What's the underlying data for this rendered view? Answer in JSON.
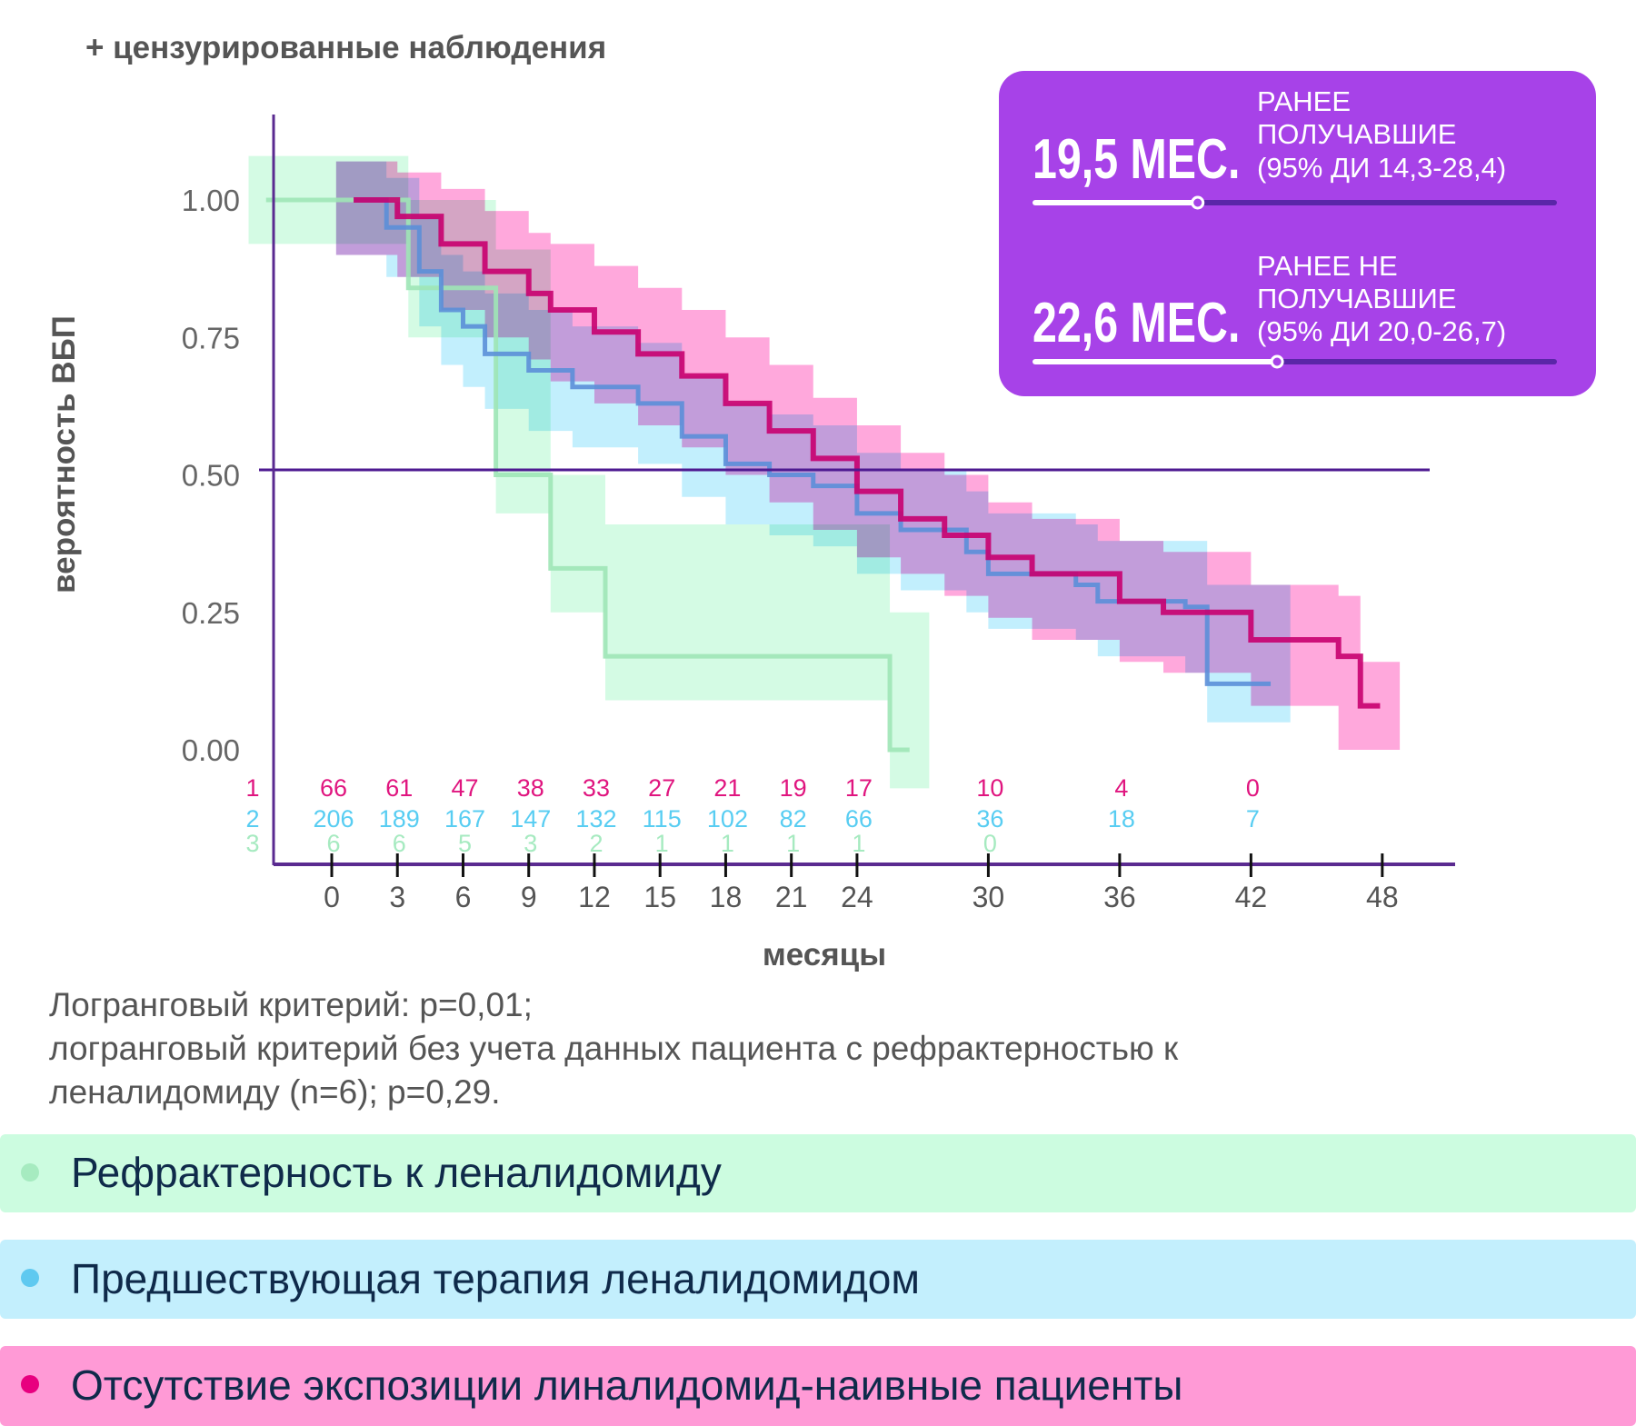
{
  "colors": {
    "pink_band": "#ff86cf",
    "pink_line": "#c8006f",
    "blue_band": "#b3ebfc",
    "blue_line": "#5b8fd8",
    "green_band": "#c9fadd",
    "green_line": "#9ee5b6",
    "box": "#a742e8",
    "median_line": "#4e1a91",
    "axis": "#5a2a90"
  },
  "header": {
    "censored_note": "+ цензурированные наблюдения"
  },
  "median_box": {
    "items": [
      {
        "value": "19,5 МЕС.",
        "line1": "РАНЕЕ",
        "line2": "ПОЛУЧАВШИЕ",
        "line3": "(95% ДИ 14,3-28,4)",
        "fraction": 0.313
      },
      {
        "value": "22,6 МЕС.",
        "line1": "РАНЕЕ НЕ",
        "line2": "ПОЛУЧАВШИЕ",
        "line3": "(95% ДИ 20,0-26,7)",
        "fraction": 0.466
      }
    ]
  },
  "chart_data": {
    "type": "line",
    "title": "",
    "xlabel": "месяцы",
    "ylabel": "вероятность ВБП",
    "xlim": [
      -3,
      49
    ],
    "ylim": [
      0,
      1
    ],
    "x_ticks": [
      0,
      3,
      6,
      9,
      12,
      15,
      18,
      21,
      24,
      30,
      36,
      42,
      48
    ],
    "x_tick_labels": [
      "0",
      "3",
      "6",
      "9",
      "12",
      "15",
      "18",
      "21",
      "24",
      "30",
      "36",
      "42",
      "48"
    ],
    "y_ticks": [
      0,
      0.25,
      0.5,
      0.75,
      1.0
    ],
    "y_tick_labels": [
      "0.00",
      "0.25",
      "0.50",
      "0.75",
      "1.00"
    ],
    "reference_line": 0.5,
    "series": [
      {
        "name": "Отсутствие экспозиции линалидомид-наивные пациенты",
        "key": "pink",
        "x": [
          1,
          3,
          5,
          7,
          9,
          10,
          12,
          14,
          16,
          18,
          20,
          22,
          24,
          26,
          28,
          30,
          32,
          36,
          38,
          42,
          46,
          47
        ],
        "y": [
          1.0,
          0.97,
          0.92,
          0.87,
          0.83,
          0.8,
          0.76,
          0.72,
          0.68,
          0.63,
          0.58,
          0.53,
          0.47,
          0.42,
          0.39,
          0.35,
          0.32,
          0.27,
          0.25,
          0.2,
          0.17,
          0.08
        ],
        "lower": [
          0.9,
          0.86,
          0.8,
          0.75,
          0.71,
          0.67,
          0.63,
          0.59,
          0.55,
          0.5,
          0.45,
          0.4,
          0.35,
          0.32,
          0.28,
          0.24,
          0.2,
          0.16,
          0.14,
          0.08,
          0.0,
          0.0
        ],
        "upper": [
          1.07,
          1.05,
          1.02,
          0.98,
          0.94,
          0.92,
          0.88,
          0.84,
          0.8,
          0.75,
          0.7,
          0.64,
          0.59,
          0.54,
          0.5,
          0.45,
          0.42,
          0.38,
          0.36,
          0.3,
          0.28,
          0.16
        ]
      },
      {
        "name": "Предшествующая терапия леналидомидом",
        "key": "blue",
        "x": [
          1,
          2.5,
          4,
          5,
          6,
          7,
          9,
          11,
          14,
          16,
          18,
          20,
          22,
          24,
          26,
          29,
          30,
          34,
          35,
          39,
          40,
          42
        ],
        "y": [
          1.0,
          0.95,
          0.87,
          0.8,
          0.77,
          0.72,
          0.69,
          0.66,
          0.63,
          0.57,
          0.52,
          0.5,
          0.48,
          0.43,
          0.4,
          0.36,
          0.32,
          0.3,
          0.27,
          0.26,
          0.12,
          0.12
        ],
        "lower": [
          0.9,
          0.86,
          0.77,
          0.7,
          0.66,
          0.62,
          0.58,
          0.55,
          0.52,
          0.46,
          0.41,
          0.39,
          0.37,
          0.32,
          0.29,
          0.25,
          0.22,
          0.2,
          0.17,
          0.14,
          0.05,
          0.05
        ],
        "upper": [
          1.07,
          1.04,
          0.97,
          0.9,
          0.87,
          0.83,
          0.8,
          0.77,
          0.74,
          0.68,
          0.63,
          0.61,
          0.59,
          0.54,
          0.51,
          0.47,
          0.43,
          0.41,
          0.38,
          0.38,
          0.3,
          0.3
        ]
      },
      {
        "name": "Рефрактерность к леналидомиду",
        "key": "green",
        "x": [
          -3,
          3.5,
          7.5,
          10,
          12.5,
          25.5
        ],
        "y": [
          1.0,
          0.84,
          0.5,
          0.33,
          0.17,
          0.0
        ],
        "lower": [
          0.92,
          0.75,
          0.43,
          0.25,
          0.09,
          -0.07
        ],
        "upper": [
          1.08,
          1.0,
          0.91,
          0.5,
          0.41,
          0.25
        ]
      }
    ],
    "risk_table": {
      "times": [
        0,
        3,
        6,
        9,
        12,
        15,
        18,
        21,
        24,
        30,
        36,
        42
      ],
      "rows": [
        {
          "label": "1",
          "key": "pink",
          "values": [
            "66",
            "61",
            "47",
            "38",
            "33",
            "27",
            "21",
            "19",
            "17",
            "10",
            "4",
            "0"
          ]
        },
        {
          "label": "2",
          "key": "blue",
          "values": [
            "206",
            "189",
            "167",
            "147",
            "132",
            "115",
            "102",
            "82",
            "66",
            "36",
            "18",
            "7"
          ]
        },
        {
          "label": "3",
          "key": "green",
          "values": [
            "6",
            "6",
            "5",
            "3",
            "2",
            "1",
            "1",
            "1",
            "1",
            "0"
          ]
        }
      ]
    }
  },
  "footnote": {
    "line1": "Логранговый критерий: p=0,01;",
    "line2": "логранговый критерий без учета данных пациента с рефрактерностью к",
    "line3": "леналидомиду (n=6); p=0,29."
  },
  "legend": [
    {
      "label": "Рефрактерность к леналидомиду",
      "bg": "#ccfce0",
      "dot": "#a6ebc0"
    },
    {
      "label": "Предшествующая терапия леналидомидом",
      "bg": "#c3effd",
      "dot": "#5fc9f0"
    },
    {
      "label": "Отсутствие экспозиции линалидомид-наивные пациенты",
      "bg": "#ff9ad6",
      "dot": "#e8007f"
    }
  ]
}
